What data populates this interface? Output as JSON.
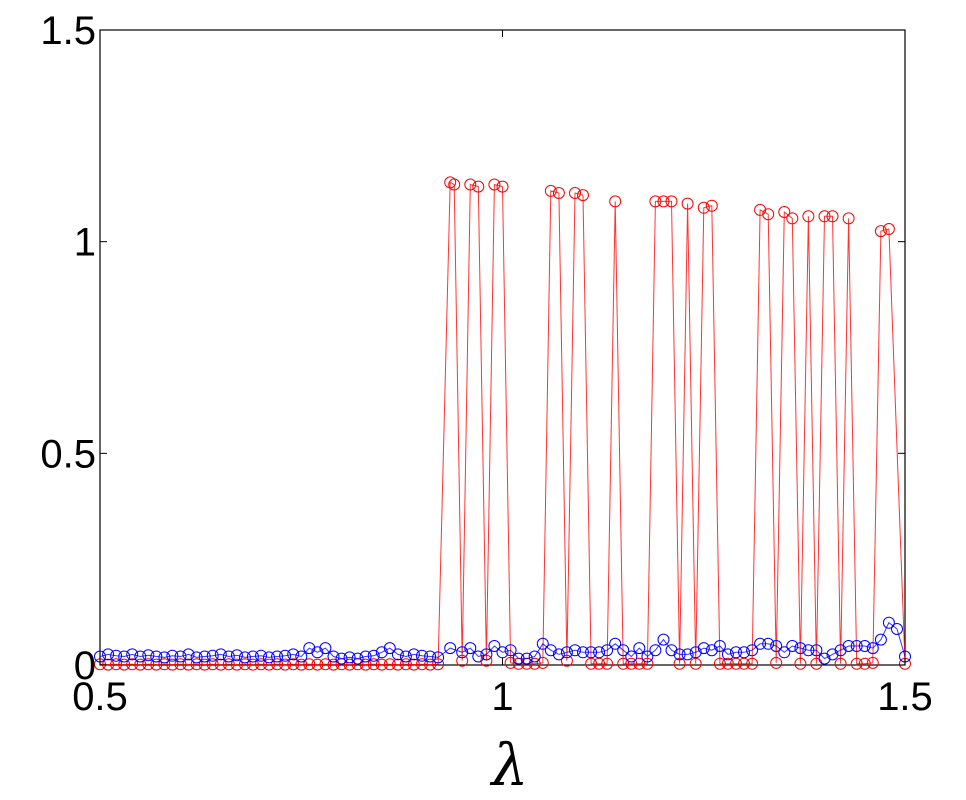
{
  "chart_data": {
    "type": "line",
    "title": "",
    "xlabel": "λ",
    "ylabel": "",
    "xlim": [
      0.5,
      1.5
    ],
    "ylim": [
      0,
      1.5
    ],
    "xticks": [
      0.5,
      1,
      1.5
    ],
    "yticks": [
      0,
      0.5,
      1,
      1.5
    ],
    "xtick_labels": [
      "0.5",
      "1",
      "1.5"
    ],
    "ytick_labels": [
      "0",
      "0.5",
      "1",
      "1.5"
    ],
    "grid": false,
    "legend": "none",
    "series": [
      {
        "color": "#ff0000",
        "marker": "circle",
        "points": [
          [
            0.5,
            0.002
          ],
          [
            0.51,
            0.001
          ],
          [
            0.52,
            0.002
          ],
          [
            0.53,
            0.001
          ],
          [
            0.54,
            0.002
          ],
          [
            0.55,
            0.001
          ],
          [
            0.56,
            0.002
          ],
          [
            0.57,
            0.001
          ],
          [
            0.58,
            0.002
          ],
          [
            0.59,
            0.001
          ],
          [
            0.6,
            0.002
          ],
          [
            0.61,
            0.001
          ],
          [
            0.62,
            0.002
          ],
          [
            0.63,
            0.001
          ],
          [
            0.64,
            0.002
          ],
          [
            0.65,
            0.001
          ],
          [
            0.66,
            0.002
          ],
          [
            0.67,
            0.001
          ],
          [
            0.68,
            0.002
          ],
          [
            0.69,
            0.001
          ],
          [
            0.7,
            0.002
          ],
          [
            0.71,
            0.001
          ],
          [
            0.72,
            0.002
          ],
          [
            0.73,
            0.001
          ],
          [
            0.74,
            0.002
          ],
          [
            0.75,
            0.001
          ],
          [
            0.76,
            0.002
          ],
          [
            0.77,
            0.001
          ],
          [
            0.78,
            0.002
          ],
          [
            0.79,
            0.001
          ],
          [
            0.8,
            0.002
          ],
          [
            0.81,
            0.001
          ],
          [
            0.82,
            0.002
          ],
          [
            0.83,
            0.001
          ],
          [
            0.84,
            0.002
          ],
          [
            0.85,
            0.001
          ],
          [
            0.86,
            0.002
          ],
          [
            0.87,
            0.001
          ],
          [
            0.88,
            0.002
          ],
          [
            0.89,
            0.001
          ],
          [
            0.9,
            0.002
          ],
          [
            0.91,
            0.001
          ],
          [
            0.92,
            0.002
          ],
          [
            0.935,
            1.14
          ],
          [
            0.94,
            1.135
          ],
          [
            0.95,
            0.01
          ],
          [
            0.96,
            1.135
          ],
          [
            0.97,
            1.13
          ],
          [
            0.98,
            0.01
          ],
          [
            0.99,
            1.135
          ],
          [
            1.0,
            1.13
          ],
          [
            1.01,
            0.005
          ],
          [
            1.02,
            0.003
          ],
          [
            1.03,
            0.003
          ],
          [
            1.04,
            0.003
          ],
          [
            1.05,
            0.005
          ],
          [
            1.06,
            1.12
          ],
          [
            1.07,
            1.115
          ],
          [
            1.08,
            0.01
          ],
          [
            1.09,
            1.115
          ],
          [
            1.1,
            1.11
          ],
          [
            1.11,
            0.003
          ],
          [
            1.12,
            0.003
          ],
          [
            1.13,
            0.003
          ],
          [
            1.14,
            1.095
          ],
          [
            1.15,
            0.003
          ],
          [
            1.16,
            0.003
          ],
          [
            1.17,
            0.003
          ],
          [
            1.18,
            0.003
          ],
          [
            1.19,
            1.095
          ],
          [
            1.2,
            1.095
          ],
          [
            1.21,
            1.095
          ],
          [
            1.22,
            0.003
          ],
          [
            1.23,
            1.09
          ],
          [
            1.24,
            0.003
          ],
          [
            1.25,
            1.08
          ],
          [
            1.26,
            1.085
          ],
          [
            1.27,
            0.003
          ],
          [
            1.28,
            0.003
          ],
          [
            1.29,
            0.003
          ],
          [
            1.3,
            0.003
          ],
          [
            1.31,
            0.003
          ],
          [
            1.32,
            1.075
          ],
          [
            1.33,
            1.065
          ],
          [
            1.34,
            0.005
          ],
          [
            1.35,
            1.07
          ],
          [
            1.36,
            1.055
          ],
          [
            1.37,
            0.003
          ],
          [
            1.38,
            1.06
          ],
          [
            1.39,
            0.003
          ],
          [
            1.4,
            1.06
          ],
          [
            1.41,
            1.06
          ],
          [
            1.42,
            0.003
          ],
          [
            1.43,
            1.055
          ],
          [
            1.44,
            0.003
          ],
          [
            1.45,
            0.003
          ],
          [
            1.46,
            0.005
          ],
          [
            1.47,
            1.025
          ],
          [
            1.48,
            1.03
          ],
          [
            1.5,
            0.003
          ]
        ]
      },
      {
        "color": "#0000ff",
        "marker": "circle",
        "points": [
          [
            0.5,
            0.02
          ],
          [
            0.51,
            0.025
          ],
          [
            0.52,
            0.022
          ],
          [
            0.53,
            0.02
          ],
          [
            0.54,
            0.025
          ],
          [
            0.55,
            0.02
          ],
          [
            0.56,
            0.023
          ],
          [
            0.57,
            0.02
          ],
          [
            0.58,
            0.018
          ],
          [
            0.59,
            0.022
          ],
          [
            0.6,
            0.02
          ],
          [
            0.61,
            0.025
          ],
          [
            0.62,
            0.018
          ],
          [
            0.63,
            0.02
          ],
          [
            0.64,
            0.022
          ],
          [
            0.65,
            0.025
          ],
          [
            0.66,
            0.02
          ],
          [
            0.67,
            0.023
          ],
          [
            0.68,
            0.018
          ],
          [
            0.69,
            0.02
          ],
          [
            0.7,
            0.022
          ],
          [
            0.71,
            0.018
          ],
          [
            0.72,
            0.02
          ],
          [
            0.73,
            0.022
          ],
          [
            0.74,
            0.025
          ],
          [
            0.75,
            0.02
          ],
          [
            0.76,
            0.04
          ],
          [
            0.77,
            0.03
          ],
          [
            0.78,
            0.04
          ],
          [
            0.79,
            0.02
          ],
          [
            0.8,
            0.015
          ],
          [
            0.81,
            0.018
          ],
          [
            0.82,
            0.015
          ],
          [
            0.83,
            0.02
          ],
          [
            0.84,
            0.022
          ],
          [
            0.85,
            0.03
          ],
          [
            0.86,
            0.04
          ],
          [
            0.87,
            0.025
          ],
          [
            0.88,
            0.02
          ],
          [
            0.89,
            0.025
          ],
          [
            0.9,
            0.022
          ],
          [
            0.91,
            0.02
          ],
          [
            0.92,
            0.018
          ],
          [
            0.935,
            0.04
          ],
          [
            0.95,
            0.03
          ],
          [
            0.96,
            0.04
          ],
          [
            0.97,
            0.02
          ],
          [
            0.98,
            0.025
          ],
          [
            0.99,
            0.045
          ],
          [
            1.0,
            0.03
          ],
          [
            1.01,
            0.035
          ],
          [
            1.02,
            0.015
          ],
          [
            1.03,
            0.015
          ],
          [
            1.04,
            0.02
          ],
          [
            1.05,
            0.05
          ],
          [
            1.06,
            0.035
          ],
          [
            1.07,
            0.025
          ],
          [
            1.08,
            0.03
          ],
          [
            1.09,
            0.035
          ],
          [
            1.1,
            0.03
          ],
          [
            1.11,
            0.03
          ],
          [
            1.12,
            0.03
          ],
          [
            1.13,
            0.035
          ],
          [
            1.14,
            0.05
          ],
          [
            1.15,
            0.035
          ],
          [
            1.16,
            0.02
          ],
          [
            1.17,
            0.04
          ],
          [
            1.18,
            0.02
          ],
          [
            1.19,
            0.035
          ],
          [
            1.2,
            0.06
          ],
          [
            1.21,
            0.035
          ],
          [
            1.22,
            0.025
          ],
          [
            1.23,
            0.025
          ],
          [
            1.24,
            0.03
          ],
          [
            1.25,
            0.04
          ],
          [
            1.26,
            0.035
          ],
          [
            1.27,
            0.045
          ],
          [
            1.28,
            0.025
          ],
          [
            1.29,
            0.03
          ],
          [
            1.3,
            0.03
          ],
          [
            1.31,
            0.035
          ],
          [
            1.32,
            0.05
          ],
          [
            1.33,
            0.05
          ],
          [
            1.34,
            0.045
          ],
          [
            1.35,
            0.03
          ],
          [
            1.36,
            0.045
          ],
          [
            1.37,
            0.04
          ],
          [
            1.38,
            0.035
          ],
          [
            1.39,
            0.035
          ],
          [
            1.4,
            0.015
          ],
          [
            1.41,
            0.025
          ],
          [
            1.42,
            0.035
          ],
          [
            1.43,
            0.045
          ],
          [
            1.44,
            0.045
          ],
          [
            1.45,
            0.045
          ],
          [
            1.46,
            0.04
          ],
          [
            1.47,
            0.06
          ],
          [
            1.48,
            0.1
          ],
          [
            1.49,
            0.085
          ],
          [
            1.5,
            0.02
          ]
        ]
      }
    ]
  }
}
